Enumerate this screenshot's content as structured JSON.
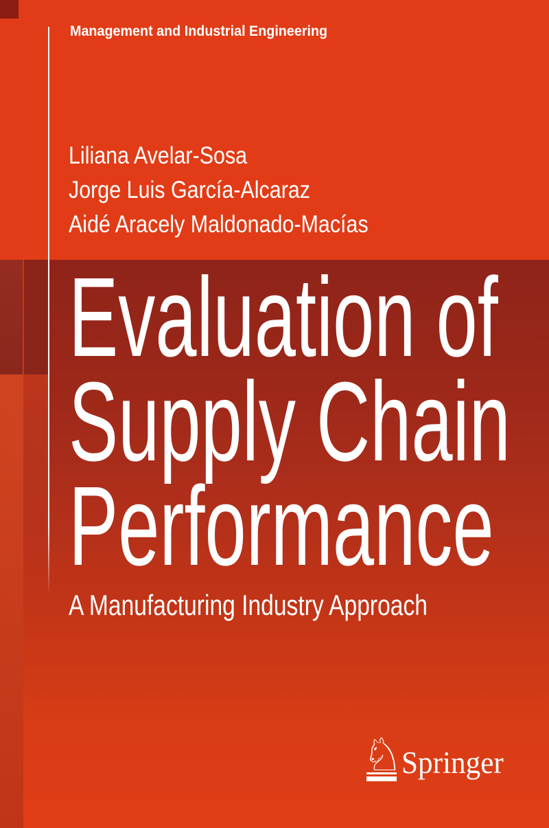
{
  "series": {
    "label": "Management and Industrial Engineering"
  },
  "authors": [
    "Liliana Avelar-Sosa",
    "Jorge Luis García-Alcaraz",
    "Aidé Aracely Maldonado-Macías"
  ],
  "title": {
    "lines": [
      "Evaluation of",
      "Supply Chain",
      "Performance"
    ]
  },
  "subtitle": "A Manufacturing Industry Approach",
  "publisher": {
    "name": "Springer",
    "knight_glyph": "♘"
  },
  "colors": {
    "top_background": "#e13c17",
    "title_band_dark": "#8f2319",
    "bottom_background": "#e03d16",
    "corner_square": "#8c1c11",
    "left_column_lower": "#c83a1a",
    "text": "#ffffff"
  }
}
